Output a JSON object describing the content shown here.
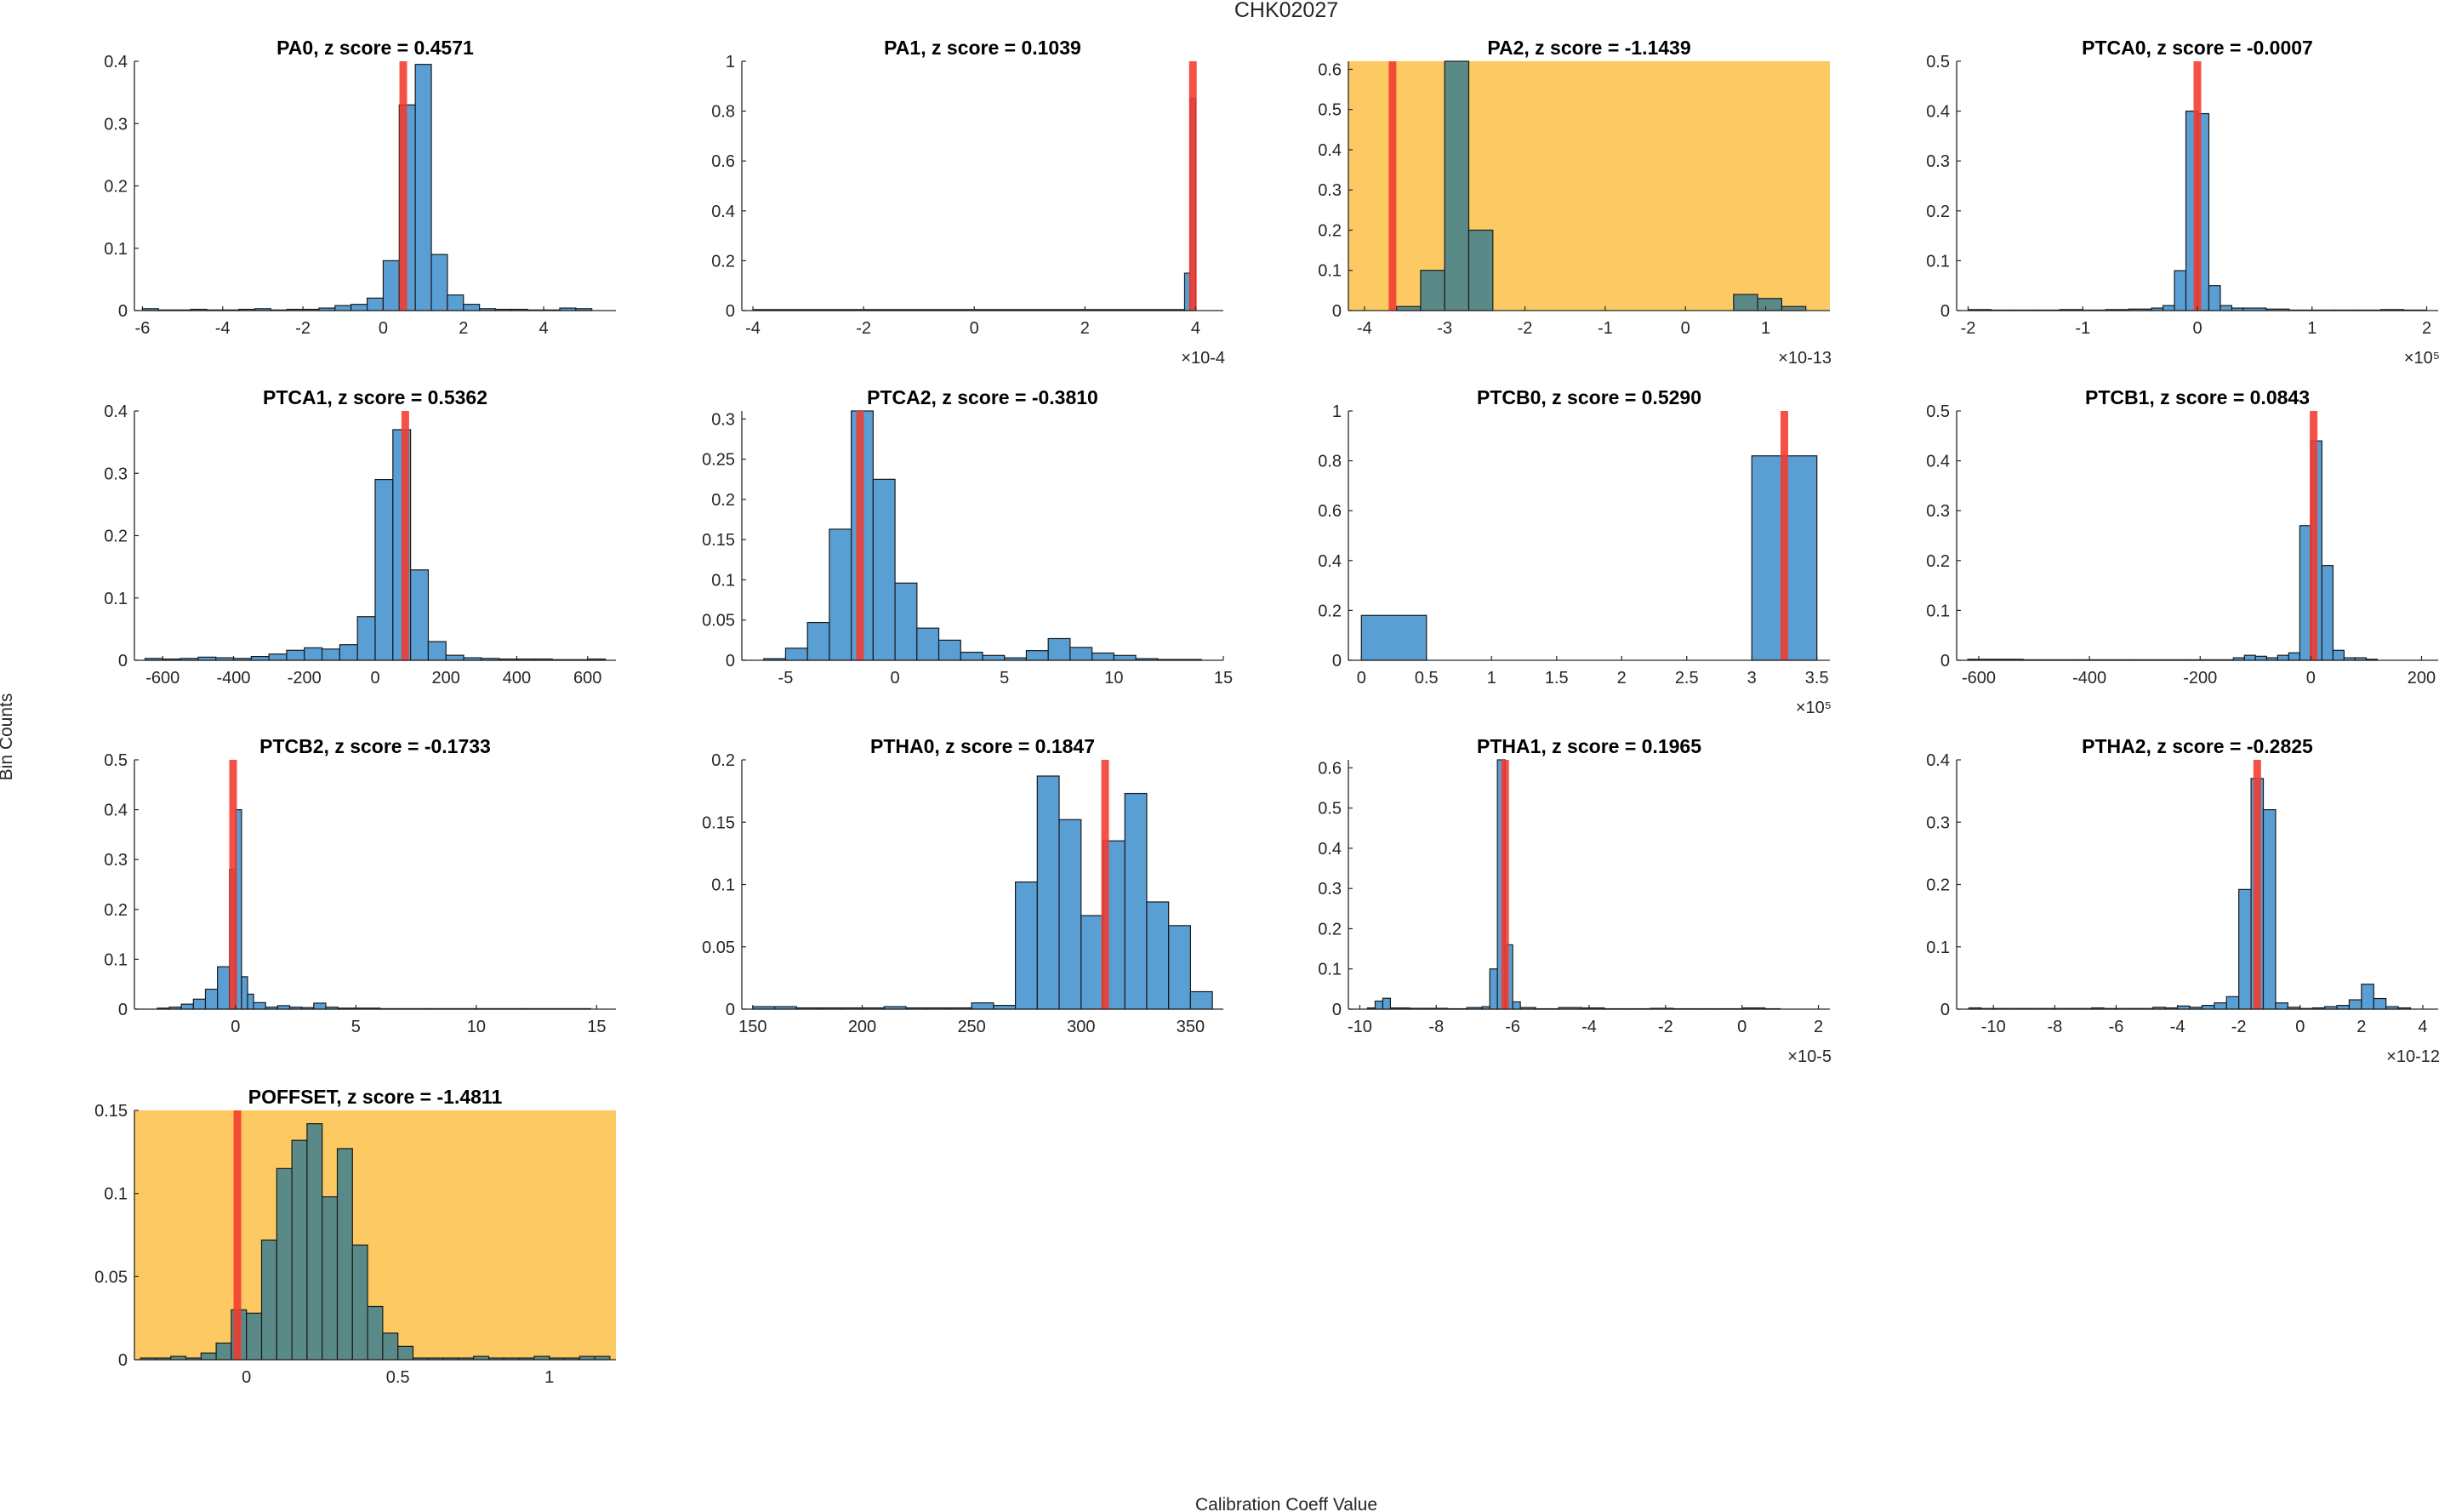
{
  "figure": {
    "title": "CHK02027",
    "xlabel": "Calibration Coeff Value",
    "ylabel": "Bin Counts"
  },
  "colors": {
    "bar_fill": "#5a9fd4",
    "bar_fill_flagged": "#5a8a88",
    "bar_edge": "#1a1a1a",
    "marker": "#f23a2e",
    "flag_background": "#fdc962",
    "axis": "#262626"
  },
  "chart_data": [
    {
      "type": "bar",
      "name": "PA0",
      "title": "PA0, z score = 0.4571",
      "flagged": false,
      "xlim": [
        -6.2,
        5.8
      ],
      "ylim": [
        0,
        0.4
      ],
      "xticks": [
        -6,
        -4,
        -2,
        0,
        2,
        4
      ],
      "xtick_labels": [
        "-6",
        "-4",
        "-2",
        "0",
        "2",
        "4"
      ],
      "yticks": [
        0,
        0.1,
        0.2,
        0.3,
        0.4
      ],
      "ytick_labels": [
        "0",
        "0.1",
        "0.2",
        "0.3",
        "0.4"
      ],
      "multiplier": "",
      "bin_edges": [
        -6,
        -5.6,
        -5.2,
        -4.8,
        -4.4,
        -4.0,
        -3.6,
        -3.2,
        -2.8,
        -2.4,
        -2.0,
        -1.6,
        -1.2,
        -0.8,
        -0.4,
        0.0,
        0.4,
        0.8,
        1.2,
        1.6,
        2.0,
        2.4,
        2.8,
        3.2,
        3.6,
        4.0,
        4.4,
        4.8,
        5.2
      ],
      "values": [
        0.003,
        0.001,
        0.001,
        0.002,
        0.001,
        0.001,
        0.002,
        0.003,
        0.001,
        0.002,
        0.002,
        0.004,
        0.008,
        0.01,
        0.02,
        0.08,
        0.33,
        0.395,
        0.09,
        0.025,
        0.01,
        0.003,
        0.002,
        0.002,
        0.001,
        0.001,
        0.004,
        0.003
      ],
      "marker_x": 0.5
    },
    {
      "type": "bar",
      "name": "PA1",
      "title": "PA1, z score = 0.1039",
      "flagged": false,
      "xlim": [
        -4.2,
        4.5
      ],
      "ylim": [
        0,
        1
      ],
      "xticks": [
        -4,
        -2,
        0,
        2,
        4
      ],
      "xtick_labels": [
        "-4",
        "-2",
        "0",
        "2",
        "4"
      ],
      "yticks": [
        0,
        0.2,
        0.4,
        0.6,
        0.8,
        1
      ],
      "ytick_labels": [
        "0",
        "0.2",
        "0.4",
        "0.6",
        "0.8",
        "1"
      ],
      "multiplier": "×10-4",
      "bin_edges": [
        -4.0,
        3.8,
        3.9,
        4.0
      ],
      "values": [
        0.004,
        0.15,
        0.85
      ],
      "marker_x": 3.95
    },
    {
      "type": "bar",
      "name": "PA2",
      "title": "PA2, z score = -1.1439",
      "flagged": true,
      "xlim": [
        -4.2,
        1.8
      ],
      "ylim": [
        0,
        0.62
      ],
      "xticks": [
        -4,
        -3,
        -2,
        -1,
        0,
        1
      ],
      "xtick_labels": [
        "-4",
        "-3",
        "-2",
        "-1",
        "0",
        "1"
      ],
      "yticks": [
        0,
        0.1,
        0.2,
        0.3,
        0.4,
        0.5,
        0.6
      ],
      "ytick_labels": [
        "0",
        "0.1",
        "0.2",
        "0.3",
        "0.4",
        "0.5",
        "0.6"
      ],
      "multiplier": "×10-13",
      "bin_edges": [
        -3.6,
        -3.3,
        -3.0,
        -2.7,
        -2.4,
        -2.1,
        -1.8,
        -1.5,
        -1.2,
        -0.9,
        -0.6,
        -0.3,
        0.0,
        0.3,
        0.6,
        0.9,
        1.2,
        1.5
      ],
      "values": [
        0.01,
        0.1,
        0.62,
        0.2,
        0,
        0,
        0,
        0,
        0,
        0,
        0,
        0,
        0,
        0,
        0.04,
        0.03,
        0.01
      ],
      "marker_x": -3.65
    },
    {
      "type": "bar",
      "name": "PTCA0",
      "title": "PTCA0, z score = -0.0007",
      "flagged": false,
      "xlim": [
        -2.1,
        2.1
      ],
      "ylim": [
        0,
        0.5
      ],
      "xticks": [
        -2,
        -1,
        0,
        1,
        2
      ],
      "xtick_labels": [
        "-2",
        "-1",
        "0",
        "1",
        "2"
      ],
      "yticks": [
        0,
        0.1,
        0.2,
        0.3,
        0.4,
        0.5
      ],
      "ytick_labels": [
        "0",
        "0.1",
        "0.2",
        "0.3",
        "0.4",
        "0.5"
      ],
      "multiplier": "×10⁵",
      "bin_edges": [
        -2.0,
        -1.8,
        -1.6,
        -1.4,
        -1.2,
        -1.0,
        -0.8,
        -0.6,
        -0.4,
        -0.3,
        -0.2,
        -0.1,
        0.0,
        0.1,
        0.2,
        0.3,
        0.4,
        0.6,
        0.8,
        1.0,
        1.2,
        1.4,
        1.6,
        1.8,
        2.0
      ],
      "values": [
        0.002,
        0.001,
        0.001,
        0.001,
        0.002,
        0.001,
        0.002,
        0.003,
        0.005,
        0.01,
        0.08,
        0.4,
        0.395,
        0.05,
        0.01,
        0.005,
        0.005,
        0.003,
        0.001,
        0.001,
        0.001,
        0.001,
        0.002,
        0.001
      ],
      "marker_x": 0.0
    },
    {
      "type": "bar",
      "name": "PTCA1",
      "title": "PTCA1, z score = 0.5362",
      "flagged": false,
      "xlim": [
        -680,
        680
      ],
      "ylim": [
        0,
        0.4
      ],
      "xticks": [
        -600,
        -400,
        -200,
        0,
        200,
        400,
        600
      ],
      "xtick_labels": [
        "-600",
        "-400",
        "-200",
        "0",
        "200",
        "400",
        "600"
      ],
      "yticks": [
        0,
        0.1,
        0.2,
        0.3,
        0.4
      ],
      "ytick_labels": [
        "0",
        "0.1",
        "0.2",
        "0.3",
        "0.4"
      ],
      "multiplier": "",
      "bin_edges": [
        -650,
        -600,
        -550,
        -500,
        -450,
        -400,
        -350,
        -300,
        -250,
        -200,
        -150,
        -100,
        -50,
        0,
        50,
        100,
        150,
        200,
        250,
        300,
        350,
        400,
        450,
        500,
        550,
        600,
        650
      ],
      "values": [
        0.003,
        0.002,
        0.003,
        0.005,
        0.004,
        0.003,
        0.006,
        0.01,
        0.016,
        0.02,
        0.018,
        0.025,
        0.07,
        0.29,
        0.37,
        0.145,
        0.03,
        0.008,
        0.004,
        0.003,
        0.002,
        0.002,
        0.002,
        0.001,
        0.001,
        0.002
      ],
      "marker_x": 85
    },
    {
      "type": "bar",
      "name": "PTCA2",
      "title": "PTCA2, z score = -0.3810",
      "flagged": false,
      "xlim": [
        -7,
        15
      ],
      "ylim": [
        0,
        0.31
      ],
      "xticks": [
        -5,
        0,
        5,
        10,
        15
      ],
      "xtick_labels": [
        "-5",
        "0",
        "5",
        "10",
        "15"
      ],
      "yticks": [
        0,
        0.05,
        0.1,
        0.15,
        0.2,
        0.25,
        0.3
      ],
      "ytick_labels": [
        "0",
        "0.05",
        "0.1",
        "0.15",
        "0.2",
        "0.25",
        "0.3"
      ],
      "multiplier": "",
      "bin_edges": [
        -6,
        -5,
        -4,
        -3,
        -2,
        -1,
        0,
        1,
        2,
        3,
        4,
        5,
        6,
        7,
        8,
        9,
        10,
        11,
        12,
        13,
        14
      ],
      "values": [
        0.002,
        0.015,
        0.047,
        0.163,
        0.31,
        0.225,
        0.096,
        0.04,
        0.025,
        0.01,
        0.006,
        0.003,
        0.012,
        0.027,
        0.016,
        0.009,
        0.006,
        0.002,
        0.001,
        0.001
      ],
      "marker_x": -1.6
    },
    {
      "type": "bar",
      "name": "PTCB0",
      "title": "PTCB0, z score = 0.5290",
      "flagged": false,
      "xlim": [
        -0.1,
        3.6
      ],
      "ylim": [
        0,
        1
      ],
      "xticks": [
        0,
        0.5,
        1,
        1.5,
        2,
        2.5,
        3,
        3.5
      ],
      "xtick_labels": [
        "0",
        "0.5",
        "1",
        "1.5",
        "2",
        "2.5",
        "3",
        "3.5"
      ],
      "yticks": [
        0,
        0.2,
        0.4,
        0.6,
        0.8,
        1
      ],
      "ytick_labels": [
        "0",
        "0.2",
        "0.4",
        "0.6",
        "0.8",
        "1"
      ],
      "multiplier": "×10⁵",
      "bin_edges": [
        0,
        0.5,
        3.0,
        3.5
      ],
      "values": [
        0.18,
        0,
        0.82
      ],
      "marker_x": 3.25
    },
    {
      "type": "bar",
      "name": "PTCB1",
      "title": "PTCB1, z score = 0.0843",
      "flagged": false,
      "xlim": [
        -640,
        230
      ],
      "ylim": [
        0,
        0.5
      ],
      "xticks": [
        -600,
        -400,
        -200,
        0,
        200
      ],
      "xtick_labels": [
        "-600",
        "-400",
        "-200",
        "0",
        "200"
      ],
      "yticks": [
        0,
        0.1,
        0.2,
        0.3,
        0.4,
        0.5
      ],
      "ytick_labels": [
        "0",
        "0.1",
        "0.2",
        "0.3",
        "0.4",
        "0.5"
      ],
      "multiplier": "",
      "bin_edges": [
        -620,
        -520,
        -420,
        -320,
        -220,
        -140,
        -120,
        -100,
        -80,
        -60,
        -40,
        -20,
        0,
        20,
        40,
        60,
        80,
        100,
        120
      ],
      "values": [
        0.002,
        0.001,
        0.001,
        0.001,
        0.001,
        0.005,
        0.01,
        0.008,
        0.005,
        0.01,
        0.015,
        0.27,
        0.44,
        0.19,
        0.02,
        0.005,
        0.005,
        0.002
      ],
      "marker_x": 5
    },
    {
      "type": "bar",
      "name": "PTCB2",
      "title": "PTCB2, z score = -0.1733",
      "flagged": false,
      "xlim": [
        -4.2,
        15.8
      ],
      "ylim": [
        0,
        0.5
      ],
      "xticks": [
        0,
        5,
        10,
        15
      ],
      "xtick_labels": [
        "0",
        "5",
        "10",
        "15"
      ],
      "yticks": [
        0,
        0.1,
        0.2,
        0.3,
        0.4,
        0.5
      ],
      "ytick_labels": [
        "0",
        "0.1",
        "0.2",
        "0.3",
        "0.4",
        "0.5"
      ],
      "multiplier": "",
      "bin_edges": [
        -3.25,
        -2.75,
        -2.25,
        -1.75,
        -1.25,
        -0.75,
        -0.25,
        0.0,
        0.25,
        0.5,
        0.75,
        1.25,
        1.75,
        2.25,
        2.75,
        3.25,
        3.75,
        4.25,
        4.75,
        6,
        8,
        10,
        12,
        14.75
      ],
      "values": [
        0.002,
        0.004,
        0.01,
        0.02,
        0.04,
        0.085,
        0.28,
        0.4,
        0.065,
        0.03,
        0.013,
        0.004,
        0.007,
        0.004,
        0.003,
        0.012,
        0.004,
        0.002,
        0.002,
        0.001,
        0.001,
        0.001,
        0.001
      ],
      "marker_x": -0.1
    },
    {
      "type": "bar",
      "name": "PTHA0",
      "title": "PTHA0, z score = 0.1847",
      "flagged": false,
      "xlim": [
        145,
        365
      ],
      "ylim": [
        0,
        0.2
      ],
      "xticks": [
        150,
        200,
        250,
        300,
        350
      ],
      "xtick_labels": [
        "150",
        "200",
        "250",
        "300",
        "350"
      ],
      "yticks": [
        0,
        0.05,
        0.1,
        0.15,
        0.2
      ],
      "ytick_labels": [
        "0",
        "0.05",
        "0.1",
        "0.15",
        "0.2"
      ],
      "multiplier": "",
      "bin_edges": [
        150,
        160,
        170,
        180,
        190,
        200,
        210,
        220,
        230,
        240,
        250,
        260,
        270,
        280,
        290,
        300,
        310,
        320,
        330,
        340,
        350,
        360
      ],
      "values": [
        0.002,
        0.002,
        0.001,
        0.001,
        0.001,
        0.001,
        0.002,
        0.001,
        0.001,
        0.001,
        0.005,
        0.003,
        0.102,
        0.187,
        0.152,
        0.075,
        0.135,
        0.173,
        0.086,
        0.067,
        0.014
      ],
      "marker_x": 311
    },
    {
      "type": "bar",
      "name": "PTHA1",
      "title": "PTHA1, z score = 0.1965",
      "flagged": false,
      "xlim": [
        -10.3,
        2.3
      ],
      "ylim": [
        0,
        0.62
      ],
      "xticks": [
        -10,
        -8,
        -6,
        -4,
        -2,
        0,
        2
      ],
      "xtick_labels": [
        "-10",
        "-8",
        "-6",
        "-4",
        "-2",
        "0",
        "2"
      ],
      "yticks": [
        0,
        0.1,
        0.2,
        0.3,
        0.4,
        0.5,
        0.6
      ],
      "ytick_labels": [
        "0",
        "0.1",
        "0.2",
        "0.3",
        "0.4",
        "0.5",
        "0.6"
      ],
      "multiplier": "×10-5",
      "bin_edges": [
        -9.8,
        -9.6,
        -9.4,
        -9.2,
        -8.7,
        -8.2,
        -7.7,
        -7.2,
        -6.8,
        -6.6,
        -6.4,
        -6.2,
        -6.0,
        -5.8,
        -5.4,
        -4.8,
        -4.2,
        -3.6,
        -3.0,
        -2.4,
        -1.8,
        -1.2,
        -0.6,
        0.0,
        0.6,
        1.0
      ],
      "values": [
        0.003,
        0.02,
        0.027,
        0.003,
        0.002,
        0.002,
        0.001,
        0.004,
        0.006,
        0.1,
        0.62,
        0.16,
        0.018,
        0.004,
        0.001,
        0.004,
        0.003,
        0.001,
        0.001,
        0.002,
        0.001,
        0.001,
        0.001,
        0.003,
        0.001
      ],
      "marker_x": -6.2
    },
    {
      "type": "bar",
      "name": "PTHA2",
      "title": "PTHA2, z score = -0.2825",
      "flagged": false,
      "xlim": [
        -11.2,
        4.5
      ],
      "ylim": [
        0,
        0.4
      ],
      "xticks": [
        -10,
        -8,
        -6,
        -4,
        -2,
        0,
        2,
        4
      ],
      "xtick_labels": [
        "-10",
        "-8",
        "-6",
        "-4",
        "-2",
        "0",
        "2",
        "4"
      ],
      "yticks": [
        0,
        0.1,
        0.2,
        0.3,
        0.4
      ],
      "ytick_labels": [
        "0",
        "0.1",
        "0.2",
        "0.3",
        "0.4"
      ],
      "multiplier": "×10-12",
      "bin_edges": [
        -10.8,
        -10.4,
        -10.0,
        -9.6,
        -9.2,
        -8.8,
        -8.4,
        -8.0,
        -7.6,
        -7.2,
        -6.8,
        -6.4,
        -6.0,
        -5.6,
        -5.2,
        -4.8,
        -4.4,
        -4.0,
        -3.6,
        -3.2,
        -2.8,
        -2.4,
        -2.0,
        -1.6,
        -1.2,
        -0.8,
        -0.4,
        0.0,
        0.4,
        0.8,
        1.2,
        1.6,
        2.0,
        2.4,
        2.8,
        3.2,
        3.6
      ],
      "values": [
        0.002,
        0.001,
        0.001,
        0.001,
        0.001,
        0.001,
        0.001,
        0.001,
        0.001,
        0.001,
        0.002,
        0.001,
        0.001,
        0.001,
        0.001,
        0.003,
        0.002,
        0.005,
        0.003,
        0.006,
        0.01,
        0.02,
        0.192,
        0.37,
        0.32,
        0.01,
        0.003,
        0.001,
        0.002,
        0.004,
        0.006,
        0.015,
        0.04,
        0.017,
        0.004,
        0.002
      ],
      "marker_x": -1.4
    },
    {
      "type": "bar",
      "name": "POFFSET",
      "title": "POFFSET, z score = -1.4811",
      "flagged": true,
      "xlim": [
        -0.37,
        1.22
      ],
      "ylim": [
        0,
        0.15
      ],
      "xticks": [
        0,
        0.5,
        1
      ],
      "xtick_labels": [
        "0",
        "0.5",
        "1"
      ],
      "yticks": [
        0,
        0.05,
        0.1,
        0.15
      ],
      "ytick_labels": [
        "0",
        "0.05",
        "0.1",
        "0.15"
      ],
      "multiplier": "",
      "bin_edges": [
        -0.35,
        -0.3,
        -0.25,
        -0.2,
        -0.15,
        -0.1,
        -0.05,
        0.0,
        0.05,
        0.1,
        0.15,
        0.2,
        0.25,
        0.3,
        0.35,
        0.4,
        0.45,
        0.5,
        0.55,
        0.6,
        0.65,
        0.7,
        0.75,
        0.8,
        0.85,
        0.9,
        0.95,
        1.0,
        1.05,
        1.1,
        1.15,
        1.2
      ],
      "values": [
        0.001,
        0.001,
        0.002,
        0.001,
        0.004,
        0.01,
        0.03,
        0.028,
        0.072,
        0.115,
        0.132,
        0.142,
        0.098,
        0.127,
        0.069,
        0.032,
        0.016,
        0.008,
        0.001,
        0.001,
        0.001,
        0.001,
        0.002,
        0.001,
        0.001,
        0.001,
        0.002,
        0.001,
        0.001,
        0.002,
        0.002
      ],
      "marker_x": -0.03
    }
  ]
}
